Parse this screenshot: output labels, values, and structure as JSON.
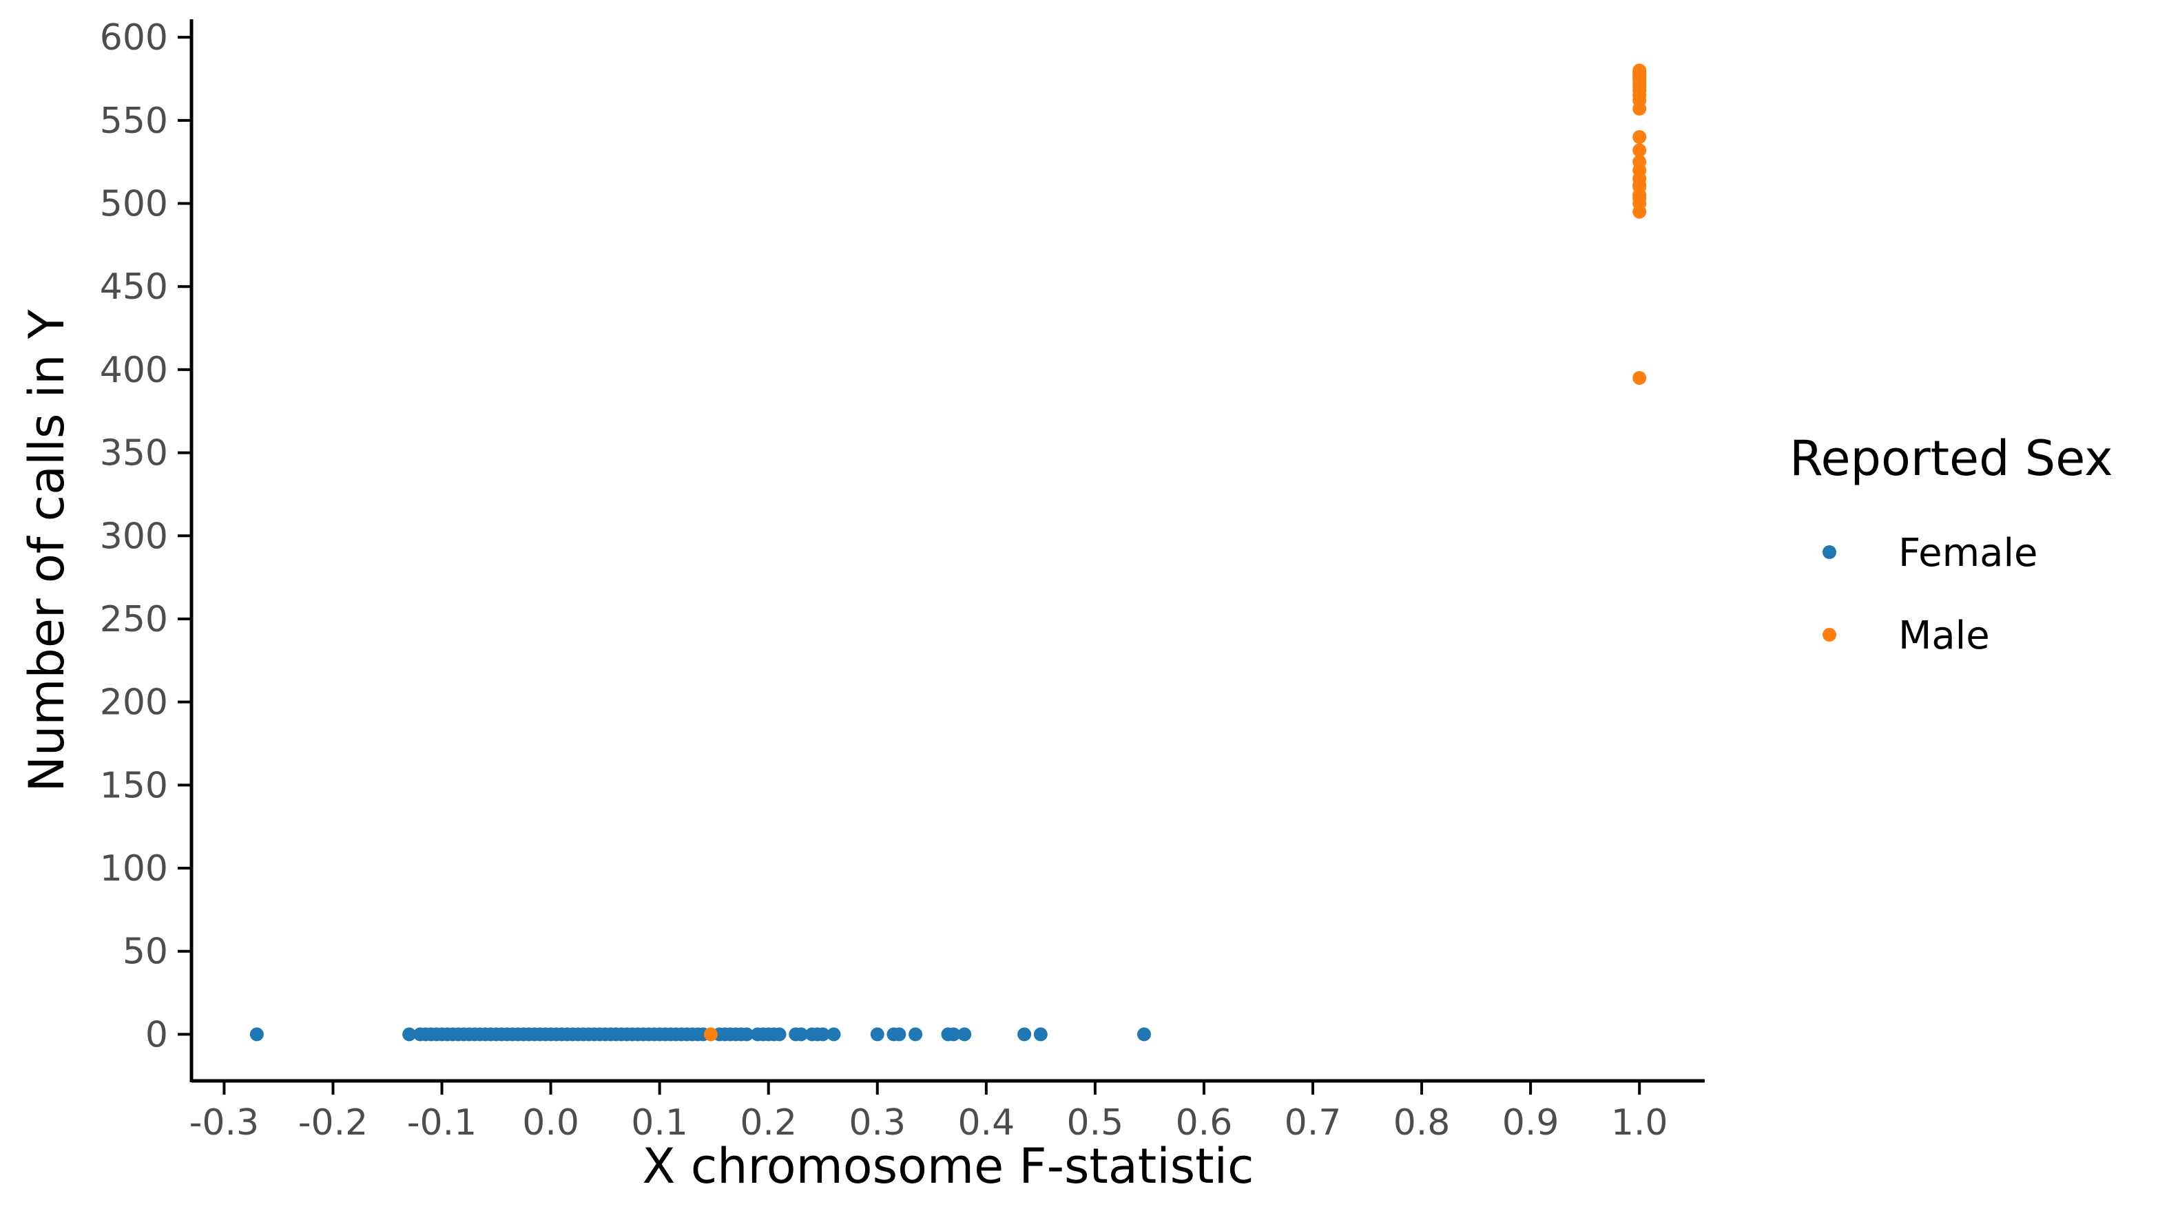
{
  "chart_data": {
    "type": "scatter",
    "title": "",
    "xlabel": "X chromosome F-statistic",
    "ylabel": "Number of calls in Y",
    "xlim": [
      -0.33,
      1.06
    ],
    "ylim": [
      -28,
      610
    ],
    "x_ticks": [
      -0.3,
      -0.2,
      -0.1,
      0.0,
      0.1,
      0.2,
      0.3,
      0.4,
      0.5,
      0.6,
      0.7,
      0.8,
      0.9,
      1.0
    ],
    "x_tick_labels": [
      "-0.3",
      "-0.2",
      "-0.1",
      "0.0",
      "0.1",
      "0.2",
      "0.3",
      "0.4",
      "0.5",
      "0.6",
      "0.7",
      "0.8",
      "0.9",
      "1.0"
    ],
    "y_ticks": [
      0,
      50,
      100,
      150,
      200,
      250,
      300,
      350,
      400,
      450,
      500,
      550,
      600
    ],
    "y_tick_labels": [
      "0",
      "50",
      "100",
      "150",
      "200",
      "250",
      "300",
      "350",
      "400",
      "450",
      "500",
      "550",
      "600"
    ],
    "grid": false,
    "legend": {
      "title": "Reported Sex",
      "position": "right"
    },
    "series": [
      {
        "name": "Female",
        "color": "#1f77b4",
        "x": [
          -0.27,
          -0.13,
          -0.12,
          -0.115,
          -0.11,
          -0.105,
          -0.1,
          -0.095,
          -0.09,
          -0.085,
          -0.08,
          -0.075,
          -0.07,
          -0.065,
          -0.06,
          -0.055,
          -0.05,
          -0.045,
          -0.04,
          -0.035,
          -0.03,
          -0.025,
          -0.02,
          -0.015,
          -0.01,
          -0.005,
          0.0,
          0.005,
          0.01,
          0.015,
          0.02,
          0.025,
          0.03,
          0.035,
          0.04,
          0.045,
          0.05,
          0.055,
          0.06,
          0.065,
          0.07,
          0.075,
          0.08,
          0.085,
          0.09,
          0.095,
          0.1,
          0.105,
          0.11,
          0.115,
          0.12,
          0.125,
          0.13,
          0.135,
          0.14,
          0.155,
          0.16,
          0.165,
          0.17,
          0.175,
          0.18,
          0.19,
          0.195,
          0.2,
          0.205,
          0.21,
          0.225,
          0.23,
          0.24,
          0.245,
          0.25,
          0.26,
          0.3,
          0.315,
          0.32,
          0.335,
          0.365,
          0.37,
          0.38,
          0.435,
          0.45,
          0.545
        ],
        "y": [
          0,
          0,
          0,
          0,
          0,
          0,
          0,
          0,
          0,
          0,
          0,
          0,
          0,
          0,
          0,
          0,
          0,
          0,
          0,
          0,
          0,
          0,
          0,
          0,
          0,
          0,
          0,
          0,
          0,
          0,
          0,
          0,
          0,
          0,
          0,
          0,
          0,
          0,
          0,
          0,
          0,
          0,
          0,
          0,
          0,
          0,
          0,
          0,
          0,
          0,
          0,
          0,
          0,
          0,
          0,
          0,
          0,
          0,
          0,
          0,
          0,
          0,
          0,
          0,
          0,
          0,
          0,
          0,
          0,
          0,
          0,
          0,
          0,
          0,
          0,
          0,
          0,
          0,
          0,
          0,
          0,
          0
        ]
      },
      {
        "name": "Male",
        "color": "#ff7f0e",
        "x": [
          0.147,
          1.0,
          1.0,
          1.0,
          1.0,
          1.0,
          1.0,
          1.0,
          1.0,
          1.0,
          1.0,
          1.0,
          1.0,
          1.0,
          1.0,
          1.0,
          1.0,
          1.0,
          1.0,
          1.0,
          1.0,
          1.0,
          1.0,
          1.0,
          1.0,
          1.0
        ],
        "y": [
          0,
          395,
          495,
          500,
          505,
          510,
          515,
          520,
          525,
          532,
          540,
          557,
          562,
          565,
          568,
          570,
          572,
          574,
          575,
          576,
          577,
          578,
          579,
          580,
          511,
          503
        ]
      }
    ]
  }
}
